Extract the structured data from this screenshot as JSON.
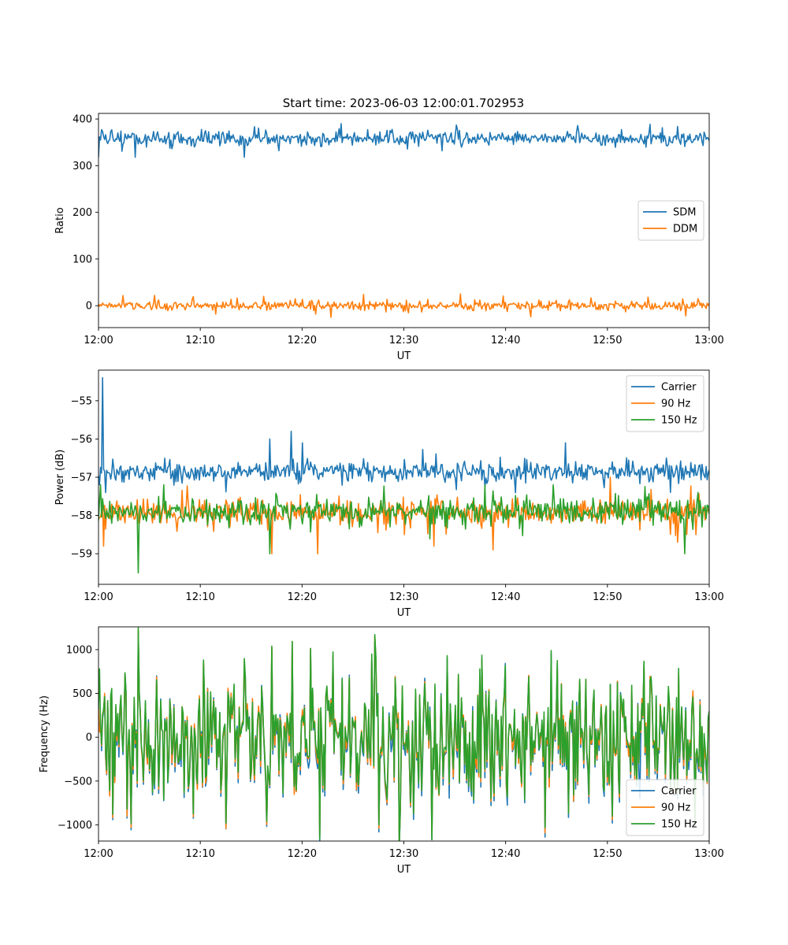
{
  "figure": {
    "title": "Start time: 2023-06-03 12:00:01.702953"
  },
  "colors": {
    "blue": "#1f77b4",
    "orange": "#ff7f0e",
    "green": "#2ca02c"
  },
  "chart_data": [
    {
      "type": "line",
      "title": "Start time: 2023-06-03 12:00:01.702953",
      "xlabel": "UT",
      "ylabel": "Ratio",
      "x_range": [
        "12:00",
        "13:00"
      ],
      "x_ticks": [
        "12:00",
        "12:10",
        "12:20",
        "12:30",
        "12:40",
        "12:50",
        "13:00"
      ],
      "ylim": [
        -47,
        412
      ],
      "y_ticks": [
        0,
        100,
        200,
        300,
        400
      ],
      "y_tick_labels": [
        "0",
        "100",
        "200",
        "300",
        "400"
      ],
      "legend_position": "center-right",
      "grid": false,
      "series": [
        {
          "name": "SDM",
          "color": "#1f77b4",
          "mean": 358,
          "spread": 14,
          "spikes": [
            [
              0.0,
              318
            ],
            [
              3.6,
              318
            ],
            [
              14.3,
              318
            ],
            [
              23.8,
              390
            ],
            [
              33.8,
              332
            ],
            [
              35.2,
              387
            ]
          ]
        },
        {
          "name": "DDM",
          "color": "#ff7f0e",
          "mean": 0,
          "spread": 8,
          "spikes": [
            [
              5.5,
              22
            ],
            [
              11.5,
              -18
            ],
            [
              16.2,
              20
            ],
            [
              21.3,
              -18
            ],
            [
              22.8,
              -25
            ],
            [
              26.0,
              24
            ],
            [
              35.6,
              25
            ],
            [
              42.5,
              -24
            ],
            [
              57.7,
              -22
            ]
          ]
        }
      ]
    },
    {
      "type": "line",
      "xlabel": "UT",
      "ylabel": "Power (dB)",
      "x_range": [
        "12:00",
        "13:00"
      ],
      "x_ticks": [
        "12:00",
        "12:10",
        "12:20",
        "12:30",
        "12:40",
        "12:50",
        "13:00"
      ],
      "ylim": [
        -59.8,
        -54.2
      ],
      "y_ticks": [
        -59,
        -58,
        -57,
        -56,
        -55
      ],
      "y_tick_labels": [
        "−59",
        "−58",
        "−57",
        "−56",
        "−55"
      ],
      "legend_position": "top-right",
      "grid": false,
      "series": [
        {
          "name": "Carrier",
          "color": "#1f77b4",
          "mean": -56.85,
          "spread": 0.22,
          "spikes": [
            [
              0.4,
              -54.4
            ],
            [
              0.1,
              -57.2
            ],
            [
              0.7,
              -57.4
            ],
            [
              18.9,
              -55.8
            ],
            [
              16.8,
              -56.0
            ],
            [
              20.0,
              -56.1
            ],
            [
              45.9,
              -56.1
            ],
            [
              50.5,
              -56.6
            ]
          ]
        },
        {
          "name": "90 Hz",
          "color": "#ff7f0e",
          "mean": -57.9,
          "spread": 0.3,
          "spikes": [
            [
              0.5,
              -56.4
            ],
            [
              0.5,
              -58.8
            ],
            [
              17.0,
              -59.0
            ],
            [
              21.5,
              -59.0
            ],
            [
              33.0,
              -58.8
            ],
            [
              38.8,
              -58.9
            ],
            [
              50.3,
              -57.0
            ],
            [
              56.9,
              -58.7
            ],
            [
              58.7,
              -58.5
            ]
          ]
        },
        {
          "name": "150 Hz",
          "color": "#2ca02c",
          "mean": -57.9,
          "spread": 0.3,
          "spikes": [
            [
              3.9,
              -59.5
            ],
            [
              0.2,
              -57.2
            ],
            [
              6.4,
              -57.2
            ],
            [
              16.8,
              -59.0
            ],
            [
              38.0,
              -57.2
            ],
            [
              44.7,
              -57.2
            ],
            [
              57.6,
              -59.0
            ],
            [
              58.9,
              -57.4
            ]
          ]
        }
      ]
    },
    {
      "type": "line",
      "xlabel": "UT",
      "ylabel": "Frequency (Hz)",
      "x_range": [
        "12:00",
        "13:00"
      ],
      "x_ticks": [
        "12:00",
        "12:10",
        "12:20",
        "12:30",
        "12:40",
        "12:50",
        "13:00"
      ],
      "ylim": [
        -1185,
        1260
      ],
      "y_ticks": [
        -1000,
        -500,
        0,
        500,
        1000
      ],
      "y_tick_labels": [
        "−1000",
        "−500",
        "0",
        "500",
        "1000"
      ],
      "legend_position": "bottom-right",
      "grid": false,
      "series": [
        {
          "name": "Carrier",
          "color": "#1f77b4",
          "offset": -80,
          "spread": 330,
          "spikes": [
            [
              3.9,
              1200
            ],
            [
              27.5,
              -1080
            ],
            [
              50.5,
              -980
            ],
            [
              17.0,
              1000
            ],
            [
              44.5,
              950
            ],
            [
              53.2,
              -700
            ]
          ]
        },
        {
          "name": "90 Hz",
          "color": "#ff7f0e",
          "offset": -40,
          "spread": 330,
          "spikes": [
            [
              3.9,
              1220
            ],
            [
              27.5,
              -1040
            ],
            [
              50.5,
              -940
            ],
            [
              17.0,
              1020
            ]
          ]
        },
        {
          "name": "150 Hz",
          "color": "#2ca02c",
          "offset": 0,
          "spread": 340,
          "spikes": [
            [
              3.9,
              1250
            ],
            [
              27.5,
              -1000
            ],
            [
              17.0,
              1040
            ],
            [
              44.5,
              990
            ],
            [
              0.1,
              780
            ],
            [
              50.5,
              -900
            ]
          ]
        }
      ]
    }
  ]
}
